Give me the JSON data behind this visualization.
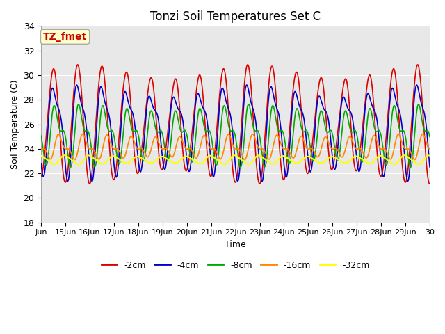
{
  "title": "Tonzi Soil Temperatures Set C",
  "xlabel": "Time",
  "ylabel": "Soil Temperature (C)",
  "ylim": [
    18,
    34
  ],
  "yticks": [
    18,
    20,
    22,
    24,
    26,
    28,
    30,
    32,
    34
  ],
  "xtick_labels": [
    "Jun",
    "15Jun",
    "16Jun",
    "17Jun",
    "18Jun",
    "19Jun",
    "20Jun",
    "21Jun",
    "22Jun",
    "23Jun",
    "24Jun",
    "25Jun",
    "26Jun",
    "27Jun",
    "28Jun",
    "29Jun",
    "30"
  ],
  "annotation_text": "TZ_fmet",
  "annotation_bg": "#FFFFCC",
  "annotation_border": "#AAAAAA",
  "annotation_text_color": "#CC0000",
  "bg_color": "#E8E8E8",
  "lines": {
    "-2cm": {
      "color": "#DD0000",
      "lw": 1.2,
      "ls": "-",
      "mean": 26.0,
      "amp": 5.5,
      "phase": 0.25,
      "lag_days": 0.0,
      "amp2": 1.5,
      "phase2": 0.0
    },
    "-4cm": {
      "color": "#0000CC",
      "lw": 1.2,
      "ls": "-",
      "mean": 25.8,
      "amp": 4.0,
      "phase": 0.25,
      "lag_days": 0.06,
      "amp2": 0.8,
      "phase2": 0.1
    },
    "-8cm": {
      "color": "#00AA00",
      "lw": 1.2,
      "ls": "-",
      "mean": 25.2,
      "amp": 2.2,
      "phase": 0.25,
      "lag_days": 0.14,
      "amp2": 0.5,
      "phase2": 0.2
    },
    "-16cm": {
      "color": "#FF8800",
      "lw": 1.2,
      "ls": "-",
      "mean": 24.1,
      "amp": 0.9,
      "phase": 0.25,
      "lag_days": 0.28,
      "amp2": 0.2,
      "phase2": 0.3
    },
    "-32cm": {
      "color": "#FFFF00",
      "lw": 1.5,
      "ls": "-",
      "mean": 23.1,
      "amp": 0.4,
      "phase": 0.25,
      "lag_days": 0.5,
      "amp2": 0.05,
      "phase2": 0.5
    }
  },
  "legend_entries": [
    {
      "label": "-2cm",
      "color": "#DD0000",
      "ls": "-"
    },
    {
      "label": "-4cm",
      "color": "#0000CC",
      "ls": "-"
    },
    {
      "label": "-8cm",
      "color": "#00AA00",
      "ls": "-"
    },
    {
      "label": "-16cm",
      "color": "#FF8800",
      "ls": "-"
    },
    {
      "label": "-32cm",
      "color": "#FFFF00",
      "ls": "-"
    }
  ],
  "grid_color": "#CCCCCC",
  "fig_bg": "#FFFFFF"
}
